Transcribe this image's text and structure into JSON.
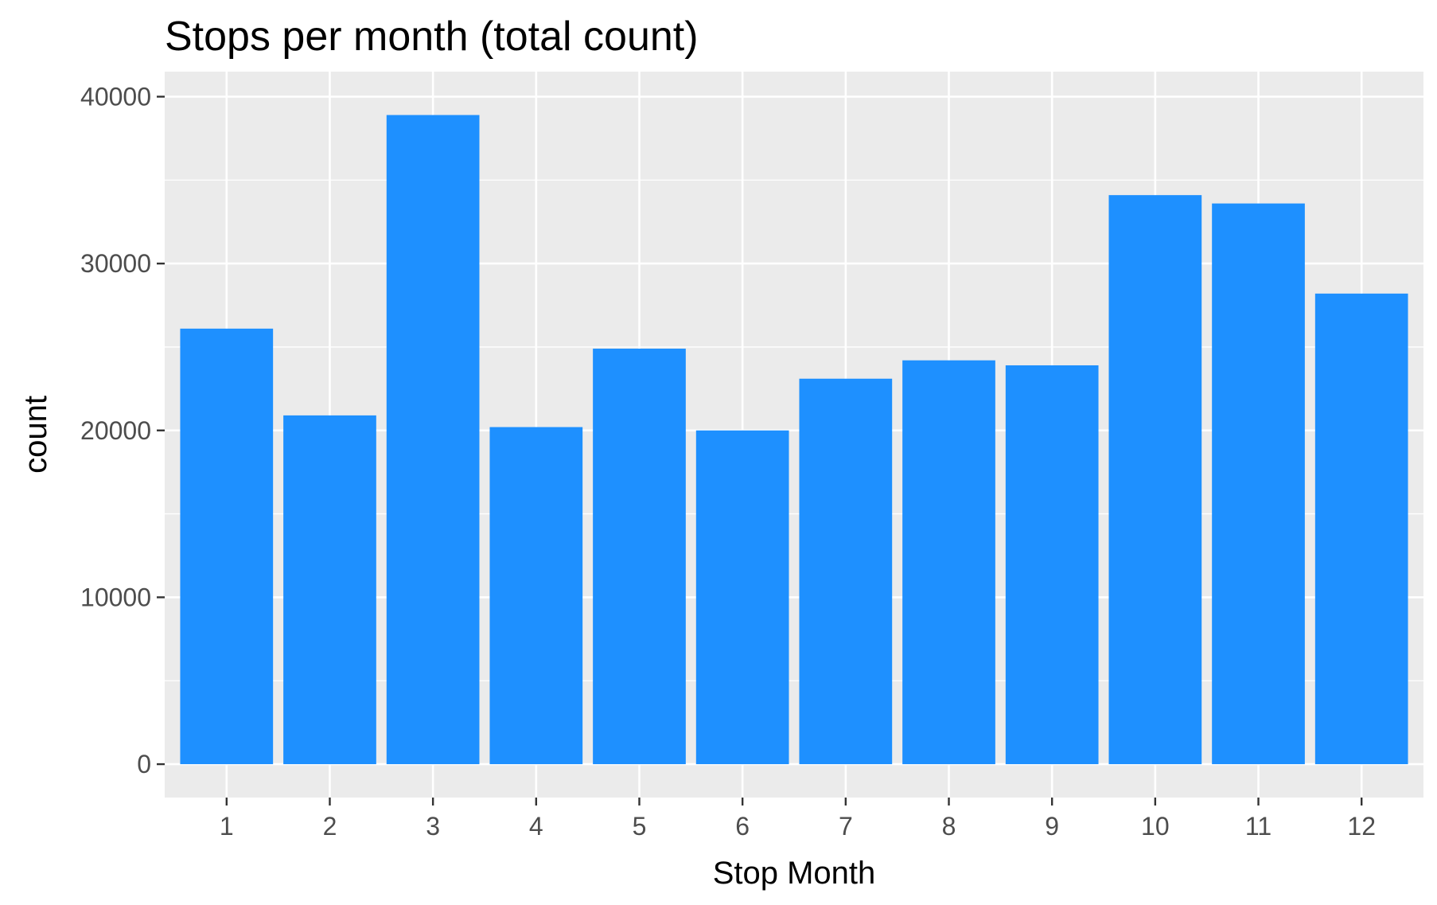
{
  "chart_data": {
    "type": "bar",
    "title": "Stops per month (total count)",
    "xlabel": "Stop Month",
    "ylabel": "count",
    "categories": [
      "1",
      "2",
      "3",
      "4",
      "5",
      "6",
      "7",
      "8",
      "9",
      "10",
      "11",
      "12"
    ],
    "values": [
      26100,
      20900,
      38900,
      20200,
      24900,
      20000,
      23100,
      24200,
      23900,
      34100,
      33600,
      28200
    ],
    "yticks": [
      0,
      10000,
      20000,
      30000,
      40000
    ],
    "ytick_labels": [
      "0",
      "10000",
      "20000",
      "30000",
      "40000"
    ],
    "ylim": [
      -2000,
      41500
    ],
    "grid": true,
    "legend": "none",
    "colors": {
      "bar": "#1E90FF",
      "panel": "#EBEBEB",
      "grid": "#FFFFFF",
      "tick_text": "#4D4D4D",
      "tick_mark": "#333333"
    }
  }
}
